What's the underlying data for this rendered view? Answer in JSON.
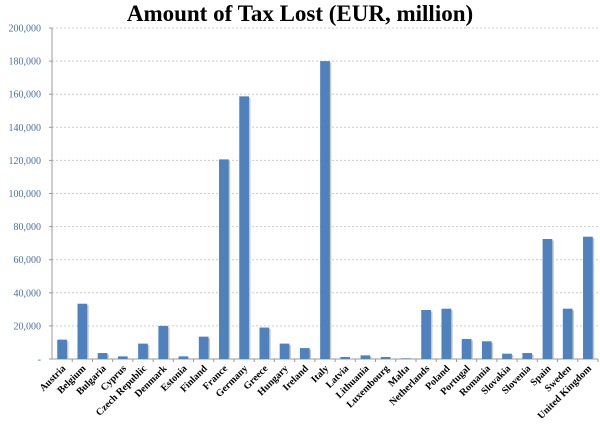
{
  "chart_data": {
    "type": "bar",
    "title": "Amount of Tax Lost (EUR, million)",
    "xlabel": "",
    "ylabel": "",
    "ylim": [
      0,
      200000
    ],
    "grid": true,
    "yticks": [
      0,
      20000,
      40000,
      60000,
      80000,
      100000,
      120000,
      140000,
      160000,
      180000,
      200000
    ],
    "ytick_labels": [
      "-",
      "20,000",
      "40,000",
      "60,000",
      "80,000",
      "100,000",
      "120,000",
      "140,000",
      "160,000",
      "180,000",
      "200,000"
    ],
    "categories": [
      "Austria",
      "Belgium",
      "Bulgaria",
      "Cyprus",
      "Czech Republic",
      "Denmark",
      "Estonia",
      "Finland",
      "France",
      "Germany",
      "Greece",
      "Hungary",
      "Ireland",
      "Italy",
      "Latvia",
      "Lithuania",
      "Luxembourg",
      "Malta",
      "Netherlands",
      "Poland",
      "Portugal",
      "Romania",
      "Slovakia",
      "Slovenia",
      "Spain",
      "Sweden",
      "United Kingdom"
    ],
    "values": [
      11700,
      33400,
      3600,
      1600,
      9300,
      20000,
      1600,
      13500,
      120600,
      158700,
      19000,
      9300,
      6600,
      180000,
      1200,
      2200,
      1200,
      400,
      29600,
      30400,
      12100,
      10700,
      3200,
      3600,
      72500,
      30400,
      73900
    ],
    "bar_color": "#4f81bd"
  }
}
